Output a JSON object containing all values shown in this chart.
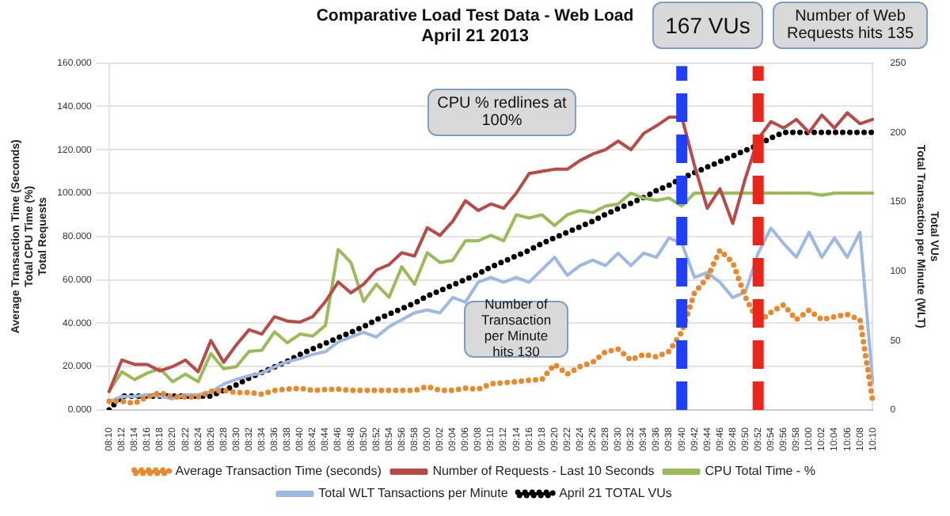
{
  "chart_data": {
    "type": "line",
    "title": "Comparative Load Test Data - Web Load",
    "subtitle": "April 21 2013",
    "ylabel": "Average Transaction Time (Seconds)\nTotal CPU Time (%)\nTotal Requests",
    "y2label": "Total VUs\nTotal Transaction per Minute (WLT)",
    "categories": [
      "08:10",
      "08:12",
      "08:14",
      "08:16",
      "08:18",
      "08:20",
      "08:22",
      "08:24",
      "08:26",
      "08:28",
      "08:30",
      "08:32",
      "08:34",
      "08:36",
      "08:38",
      "08:40",
      "08:42",
      "08:44",
      "08:46",
      "08:48",
      "08:50",
      "08:52",
      "08:54",
      "08:56",
      "08:58",
      "09:00",
      "09:02",
      "09:04",
      "09:06",
      "09:08",
      "09:10",
      "09:12",
      "09:14",
      "09:16",
      "09:18",
      "09:20",
      "09:22",
      "09:24",
      "09:26",
      "09:28",
      "09:30",
      "09:32",
      "09:34",
      "09:36",
      "09:38",
      "09:40",
      "09:42",
      "09:44",
      "09:46",
      "09:48",
      "09:50",
      "09:52",
      "09:54",
      "09:56",
      "09:58",
      "10:00",
      "10:02",
      "10:04",
      "10:06",
      "10:08",
      "10:10"
    ],
    "series": [
      {
        "name": "Average Transaction Time (seconds)",
        "color": "#e8892f",
        "line_style": "dotted",
        "values": [
          4,
          4,
          3,
          6,
          8,
          6,
          6,
          6,
          8.5,
          9,
          8,
          8,
          7.3,
          9,
          9.6,
          10,
          9,
          9.4,
          9.6,
          9,
          9,
          9,
          9,
          9,
          9,
          10.8,
          9,
          9,
          10,
          9.6,
          12,
          12.6,
          13,
          13.7,
          14,
          21,
          16.5,
          20,
          22,
          26.8,
          28,
          23,
          25.6,
          24.5,
          27,
          36,
          54,
          61,
          73.7,
          68,
          52,
          40.5,
          45,
          48.5,
          41.6,
          46,
          41.6,
          43,
          44,
          41.6,
          4
        ]
      },
      {
        "name": "Number of Requests - Last 10 Seconds",
        "color": "#b84a47",
        "values": [
          8.5,
          23,
          21,
          21,
          18,
          20,
          23,
          17.6,
          32,
          22,
          30,
          37,
          35,
          43,
          41,
          40.5,
          43,
          50,
          59,
          54,
          58,
          64.5,
          67,
          72.5,
          71,
          84,
          80.5,
          87,
          96.5,
          92,
          95,
          93,
          100,
          109,
          110,
          111,
          111,
          115,
          118,
          120,
          124,
          120,
          127.5,
          131,
          135,
          135,
          112.6,
          93,
          102,
          86,
          107,
          125,
          133,
          130,
          134,
          128,
          136,
          130,
          137,
          132,
          134
        ]
      },
      {
        "name": "CPU Total Time - %",
        "color": "#9bbb59",
        "values": [
          8.5,
          17.6,
          14,
          17,
          19,
          13,
          16.5,
          13,
          26,
          19,
          20,
          27,
          27.5,
          36,
          31,
          35,
          34,
          39,
          74,
          68,
          50,
          58,
          52,
          66,
          58,
          72.5,
          68,
          69,
          78,
          78,
          80.5,
          78,
          90,
          88.5,
          90,
          85,
          90,
          92,
          91,
          94,
          95,
          100,
          97.7,
          96.6,
          97.7,
          94,
          100,
          100,
          100,
          100,
          100,
          100,
          100,
          100,
          100,
          100,
          99,
          100,
          100,
          100,
          100
        ]
      },
      {
        "name": "Total WLT Tansactions per Minute",
        "color": "#9db9e3",
        "axis": "y2",
        "values": [
          6,
          9.7,
          9.7,
          11,
          10,
          8,
          11,
          11,
          13,
          18.6,
          22,
          24.7,
          26.5,
          31,
          34.7,
          37,
          40,
          42,
          49,
          52.5,
          56,
          52.5,
          60,
          65,
          70,
          72,
          70,
          81,
          77.6,
          92,
          95.5,
          92,
          95.5,
          92,
          101,
          110,
          97,
          104,
          108,
          104,
          113,
          104,
          113,
          110,
          124,
          120,
          95.5,
          99,
          92,
          81,
          85,
          113,
          131,
          120,
          110,
          128,
          110,
          124,
          110,
          128,
          20
        ]
      },
      {
        "name": "April 21 TOTAL VUs",
        "color": "#000000",
        "axis": "y2",
        "line_style": "dotted",
        "values": [
          0,
          10,
          10,
          10,
          10,
          10,
          10,
          10,
          10,
          14,
          18,
          23,
          27,
          31,
          35,
          40,
          44,
          48,
          52,
          56,
          60,
          65,
          69,
          73,
          77,
          82,
          86,
          90,
          94,
          98,
          103,
          107,
          111,
          115,
          120,
          124,
          128,
          132,
          136,
          141,
          145,
          149,
          153,
          158,
          162,
          167,
          171,
          175,
          179,
          183,
          187,
          191,
          196,
          200,
          200,
          200,
          200,
          200,
          200,
          200,
          200
        ]
      }
    ],
    "ylim": [
      0,
      160
    ],
    "yticks": [
      {
        "value": 0,
        "label": "0.000"
      },
      {
        "value": 20,
        "label": "20.000"
      },
      {
        "value": 40,
        "label": "40.000"
      },
      {
        "value": 60,
        "label": "60.000"
      },
      {
        "value": 80,
        "label": "80.000"
      },
      {
        "value": 100,
        "label": "100.000"
      },
      {
        "value": 120,
        "label": "120.000"
      },
      {
        "value": 140,
        "label": "140.000"
      },
      {
        "value": 160,
        "label": "160.000"
      }
    ],
    "y2lim": [
      0,
      250
    ],
    "y2ticks": [
      0,
      50,
      100,
      150,
      200,
      250
    ],
    "ref_lines": [
      {
        "axis": "x",
        "value": "09:40",
        "color": "#1f3fff",
        "line_style": "dashed"
      },
      {
        "axis": "x",
        "value": "09:52",
        "color": "#e8261a",
        "line_style": "dashed"
      }
    ],
    "annotations": [
      "167 VUs",
      "Number of Web Requests hits 135",
      "CPU % redlines at 100%",
      "Number of Transaction per Minute hits 130"
    ],
    "grid": "y",
    "legend": "bottom"
  }
}
